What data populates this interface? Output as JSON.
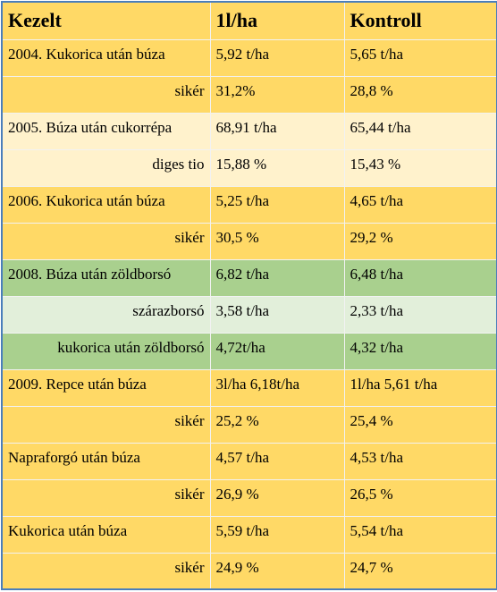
{
  "table": {
    "header": [
      "Kezelt",
      "1l/ha",
      "Kontroll"
    ],
    "rows": [
      [
        "2004. Kukorica után búza",
        "5,92 t/ha",
        "5,65 t/ha"
      ],
      [
        "sikér",
        "31,2%",
        "28,8 %"
      ],
      [
        "2005. Búza után cukorrépa",
        "68,91 t/ha",
        "65,44 t/ha"
      ],
      [
        "diges tio",
        "15,88 %",
        "15,43 %"
      ],
      [
        "2006. Kukorica után búza",
        "5,25 t/ha",
        "4,65 t/ha"
      ],
      [
        "sikér",
        "30,5 %",
        "29,2 %"
      ],
      [
        "2008. Búza után zöldborsó",
        "6,82 t/ha",
        "6,48 t/ha"
      ],
      [
        "szárazborsó",
        "3,58 t/ha",
        "2,33 t/ha"
      ],
      [
        "kukorica után zöldborsó",
        "4,72t/ha",
        "4,32 t/ha"
      ],
      [
        "2009. Repce után búza",
        "3l/ha 6,18t/ha",
        "1l/ha 5,61 t/ha"
      ],
      [
        "sikér",
        "25,2 %",
        "25,4 %"
      ],
      [
        "Napraforgó után búza",
        "4,57 t/ha",
        "4,53 t/ha"
      ],
      [
        "sikér",
        "26,9 %",
        "26,5 %"
      ],
      [
        "Kukorica után búza",
        "5,59 t/ha",
        "5,54 t/ha"
      ],
      [
        "sikér",
        "24,9 %",
        "24,7 %"
      ]
    ]
  }
}
